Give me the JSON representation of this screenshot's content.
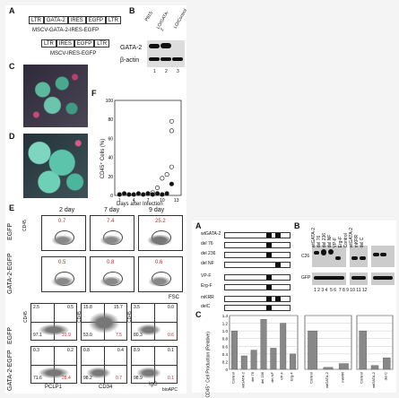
{
  "panels": {
    "A_letter": "A",
    "B_letter": "B",
    "C_letter": "C",
    "D_letter": "D",
    "E_letter": "E",
    "F_letter": "F"
  },
  "construct": {
    "line1_parts": [
      "LTR",
      "GATA-2",
      "IRES",
      "EGFP",
      "LTR"
    ],
    "line1_label": "MSCV-GATA-2-IRES-EGFP",
    "line2_parts": [
      "LTR",
      "IRES",
      "EGFP",
      "LTR"
    ],
    "line2_label": "MSCV-IRES-EGFP"
  },
  "blotB": {
    "columns": [
      "P815",
      "LO/GATA-2",
      "LO/Control"
    ],
    "rows": [
      "GATA-2",
      "β-actin"
    ],
    "lanes": [
      "1",
      "2",
      "3"
    ]
  },
  "panelF": {
    "ylabel": "CD45⁺ Cells (%)",
    "xlabel": "Days after Infection",
    "y_ticks": [
      "0",
      "20",
      "40",
      "60",
      "80",
      "100"
    ],
    "x_ticks": [
      "1",
      "4",
      "7",
      "10",
      "13"
    ]
  },
  "chart_data": [
    {
      "type": "scatter",
      "title": "",
      "xlabel": "Days after Infection",
      "ylabel": "CD45⁺ Cells (%)",
      "xlim": [
        0,
        14
      ],
      "ylim": [
        0,
        100
      ],
      "series": [
        {
          "marker": "open",
          "x": [
            7,
            8,
            9,
            10,
            11,
            12,
            12,
            12
          ],
          "y": [
            2,
            3,
            8,
            18,
            22,
            30,
            68,
            78
          ]
        },
        {
          "marker": "filled",
          "x": [
            1,
            2,
            3,
            4,
            5,
            6,
            7,
            8,
            9,
            10,
            11,
            12
          ],
          "y": [
            1,
            2,
            1,
            1,
            2,
            1,
            2,
            1,
            2,
            1,
            2,
            12
          ]
        }
      ]
    },
    {
      "type": "bar",
      "title": "",
      "ylabel": "CD45⁺ Cell Production (Relative)",
      "ylim": [
        0,
        1.4
      ],
      "y_ticks": [
        "0",
        "0.2",
        "0.4",
        "0.6",
        "0.8",
        "1.0",
        "1.2",
        "1.4"
      ],
      "groups": [
        {
          "categories": [
            "Control",
            "wtGATA-2",
            "del 76",
            "del 236",
            "del NF",
            "VP-F",
            "Erg-F"
          ],
          "values": [
            1.0,
            0.35,
            0.5,
            1.3,
            0.55,
            1.2,
            0.4
          ]
        },
        {
          "categories": [
            "Control",
            "wtGATA-2",
            "mKRR"
          ],
          "values": [
            1.0,
            0.05,
            0.15
          ]
        },
        {
          "categories": [
            "Control",
            "wtGATA-2",
            "del C"
          ],
          "values": [
            1.0,
            0.1,
            0.3
          ]
        }
      ]
    }
  ],
  "panelE": {
    "time_labels": [
      "2 day",
      "7 day",
      "9 day"
    ],
    "row1_ylabel": "EGFP",
    "row1_sub": "CD45",
    "row2_ylabel": "GATA-2-EGFP",
    "top_pct": [
      "0.7",
      "7.4",
      "25.2"
    ],
    "mid_pct": [
      "0.5",
      "0.8",
      "0.6"
    ],
    "fsc_label": "FSC",
    "bottom_top": {
      "q": [
        [
          "2.5",
          "0.5"
        ],
        [
          "15.8",
          "15.7"
        ],
        [
          "3.5",
          "0.0"
        ]
      ],
      "q_low": [
        [
          "97.1",
          "31.9"
        ],
        [
          "53.0",
          "7.5"
        ],
        [
          "80.3",
          "0.6"
        ]
      ]
    },
    "bottom_bot": {
      "q": [
        [
          "0.3",
          "0.2"
        ],
        [
          "0.8",
          "0.4"
        ],
        [
          "8.9",
          "0.1"
        ]
      ],
      "q_low": [
        [
          "71.6",
          "28.4"
        ],
        [
          "98.2",
          "0.7"
        ],
        [
          "98.9",
          "0.1"
        ]
      ]
    },
    "axis_pclp1": "PCLP1",
    "axis_cd34": "CD34",
    "axis_igg": "IgG",
    "axis_bioapc": "bioAPC",
    "row3_label": "EGFP",
    "row4_label": "GATA-2-EGFP",
    "row3_ylabels": [
      "CD45",
      "CD45",
      "CD45"
    ]
  },
  "rightA": {
    "letter": "A",
    "rows": [
      "wtGATA-2",
      "del 76",
      "del 236",
      "del NF",
      "VP-F",
      "Erg-F",
      "mKRR",
      "delC"
    ]
  },
  "rightB": {
    "letter": "B",
    "cols": [
      "wtGATA-2",
      "del 76",
      "del 236",
      "del NF",
      "VP-F",
      "Erg-F",
      "Control",
      "wtGATA-2",
      "mKRR",
      "del C"
    ],
    "row1": "C26",
    "row2": "GFP",
    "lanes": [
      "1",
      "2",
      "3",
      "4",
      "5",
      "6",
      "7",
      "8",
      "9",
      "10",
      "11",
      "12"
    ],
    "left_col": "GATA-2"
  },
  "rightC": {
    "letter": "C",
    "ylabel": "CD45⁺ Cell Production (Relative)"
  }
}
